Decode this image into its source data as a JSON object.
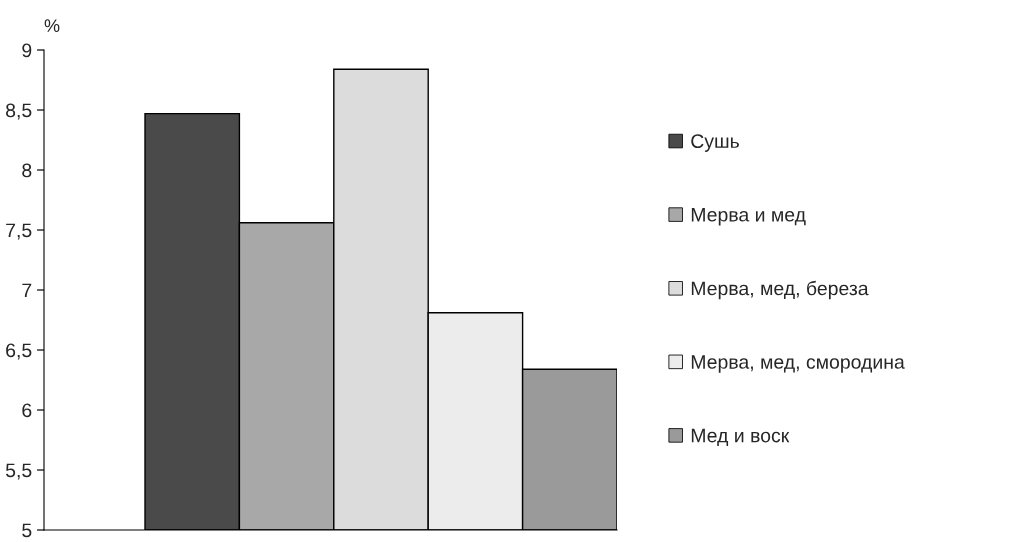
{
  "chart_data": {
    "type": "bar",
    "ylabel": "%",
    "categories": [
      null
    ],
    "series": [
      {
        "name": "Сушь",
        "color": "#4a4a4a",
        "values": [
          8.47
        ]
      },
      {
        "name": "Мерва и мед",
        "color": "#a8a8a8",
        "values": [
          7.56
        ]
      },
      {
        "name": "Мерва, мед, береза",
        "color": "#dcdcdc",
        "values": [
          8.84
        ]
      },
      {
        "name": "Мерва, мед, смородина",
        "color": "#ececec",
        "values": [
          6.81
        ]
      },
      {
        "name": "Мед и воск",
        "color": "#9a9a9a",
        "values": [
          6.34
        ]
      }
    ],
    "ylim": [
      5,
      9
    ],
    "yticks": [
      5,
      {
        "value": 5.5,
        "label": "5,5"
      },
      6,
      {
        "value": 6.5,
        "label": "6,5"
      },
      7,
      {
        "value": 7.5,
        "label": "7,5"
      },
      8,
      {
        "value": 8.5,
        "label": "8,5"
      },
      9
    ],
    "grid": false,
    "legend": "right"
  }
}
